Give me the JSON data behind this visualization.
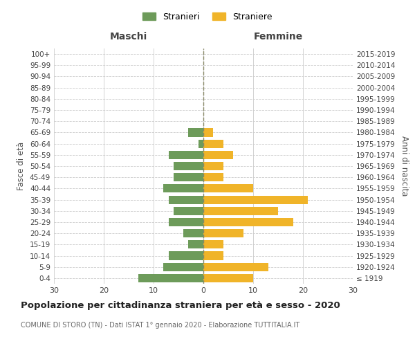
{
  "age_groups": [
    "100+",
    "95-99",
    "90-94",
    "85-89",
    "80-84",
    "75-79",
    "70-74",
    "65-69",
    "60-64",
    "55-59",
    "50-54",
    "45-49",
    "40-44",
    "35-39",
    "30-34",
    "25-29",
    "20-24",
    "15-19",
    "10-14",
    "5-9",
    "0-4"
  ],
  "birth_years": [
    "≤ 1919",
    "1920-1924",
    "1925-1929",
    "1930-1934",
    "1935-1939",
    "1940-1944",
    "1945-1949",
    "1950-1954",
    "1955-1959",
    "1960-1964",
    "1965-1969",
    "1970-1974",
    "1975-1979",
    "1980-1984",
    "1985-1989",
    "1990-1994",
    "1995-1999",
    "2000-2004",
    "2005-2009",
    "2010-2014",
    "2015-2019"
  ],
  "maschi": [
    0,
    0,
    0,
    0,
    0,
    0,
    0,
    3,
    1,
    7,
    6,
    6,
    8,
    7,
    6,
    7,
    4,
    3,
    7,
    8,
    13
  ],
  "femmine": [
    0,
    0,
    0,
    0,
    0,
    0,
    0,
    2,
    4,
    6,
    4,
    4,
    10,
    21,
    15,
    18,
    8,
    4,
    4,
    13,
    10
  ],
  "color_maschi": "#6d9b5a",
  "color_femmine": "#f0b429",
  "title": "Popolazione per cittadinanza straniera per età e sesso - 2020",
  "subtitle": "COMUNE DI STORO (TN) - Dati ISTAT 1° gennaio 2020 - Elaborazione TUTTITALIA.IT",
  "xlabel_left": "Maschi",
  "xlabel_right": "Femmine",
  "ylabel_left": "Fasce di età",
  "ylabel_right": "Anni di nascita",
  "legend_maschi": "Stranieri",
  "legend_femmine": "Straniere",
  "xlim": 30,
  "background_color": "#ffffff",
  "grid_color": "#cccccc"
}
